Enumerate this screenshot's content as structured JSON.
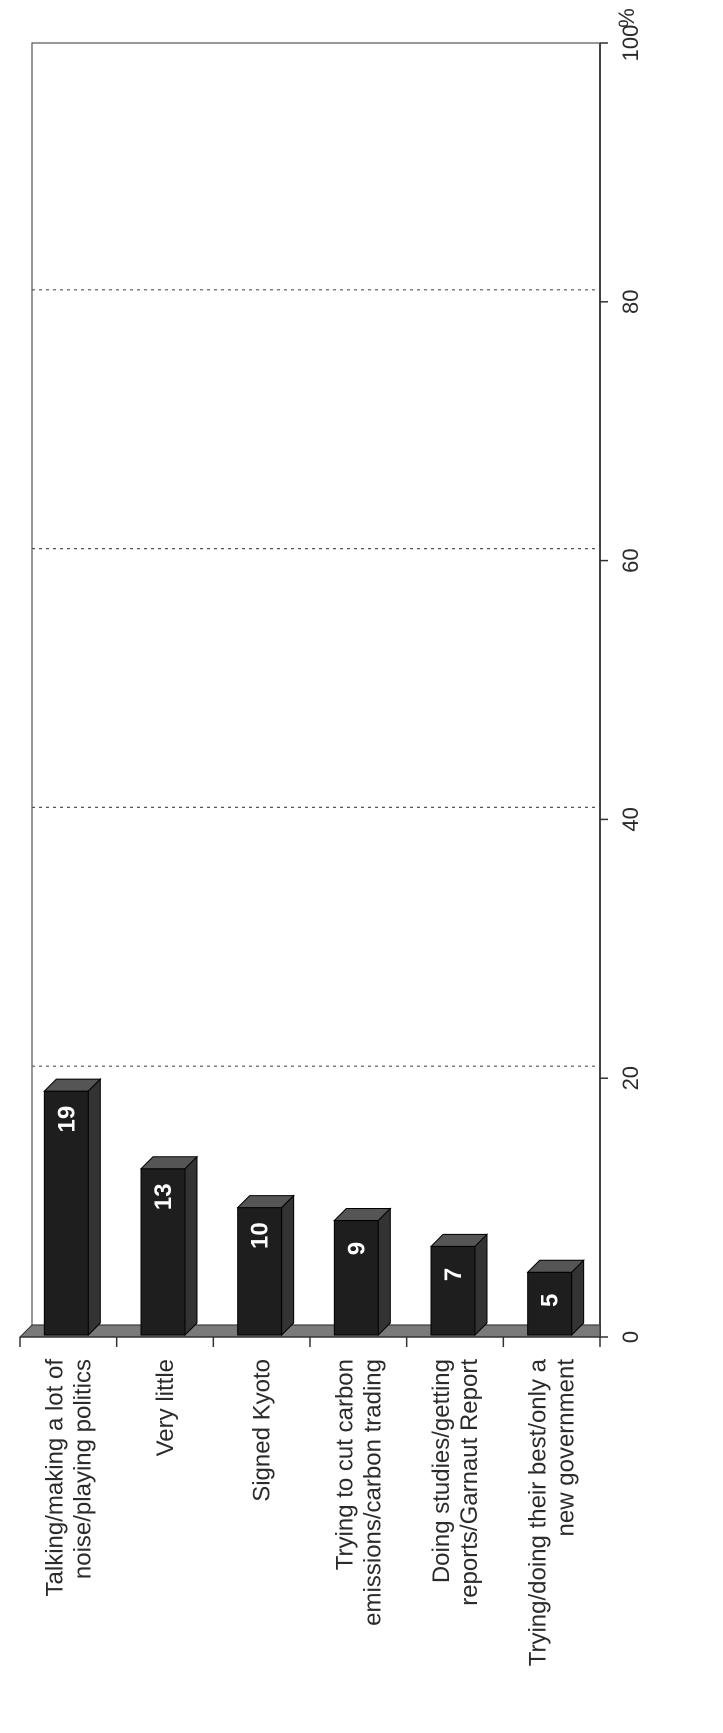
{
  "chart_data": {
    "type": "bar",
    "orientation": "rotated 90 degrees clockwise (bars grow upward on the page, categories run left to right)",
    "title": "",
    "unit_label": "%",
    "categories": [
      [
        "Talking/making a lot of",
        "noise/playing politics"
      ],
      [
        "Very little"
      ],
      [
        "Signed Kyoto"
      ],
      [
        "Trying to cut carbon",
        "emissions/carbon trading"
      ],
      [
        "Doing studies/getting",
        "reports/Garnaut Report"
      ],
      [
        "Trying/doing their best/only a",
        "new government"
      ]
    ],
    "values": [
      19,
      13,
      10,
      9,
      7,
      5
    ],
    "value_labels": [
      "19",
      "13",
      "10",
      "9",
      "7",
      "5"
    ],
    "ylim": [
      0,
      100
    ],
    "ticks": [
      0,
      20,
      40,
      60,
      80,
      100
    ],
    "tick_labels": [
      "0",
      "20",
      "40",
      "60",
      "80",
      "100"
    ],
    "gridlines": "dotted at 20, 40, 60, 80",
    "bar_color": "#1e1e1e",
    "bar_side_color": "#555555",
    "floor_color": "#7a7a7a"
  }
}
